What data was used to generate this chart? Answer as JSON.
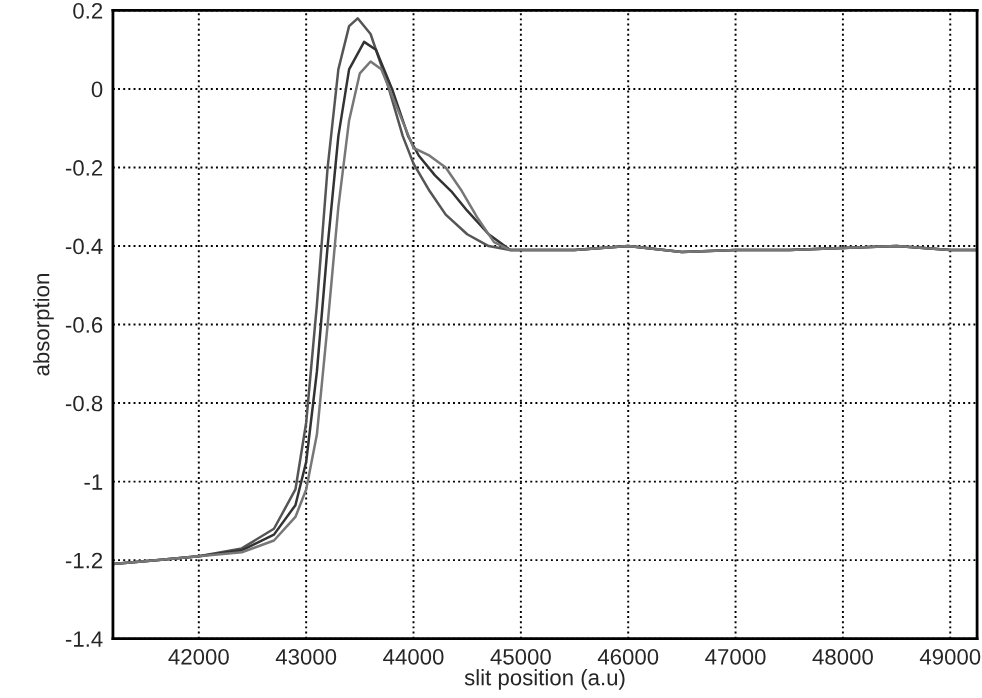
{
  "chart_data": {
    "type": "line",
    "xlabel": "slit position (a.u)",
    "ylabel": "absorption",
    "xlim": [
      41200,
      49250
    ],
    "ylim": [
      -1.4,
      0.2
    ],
    "xticks": [
      42000,
      43000,
      44000,
      45000,
      46000,
      47000,
      48000,
      49000
    ],
    "yticks": [
      -1.4,
      -1.2,
      -1,
      -0.8,
      -0.6,
      -0.4,
      -0.2,
      0,
      0.2
    ],
    "grid": true,
    "marker": "none",
    "line_style": "solid",
    "series": [
      {
        "color": "#555555",
        "x": [
          41200,
          41600,
          42000,
          42400,
          42700,
          42900,
          43000,
          43100,
          43200,
          43300,
          43400,
          43480,
          43600,
          43750,
          43900,
          44000,
          44150,
          44300,
          44500,
          44700,
          44900,
          45000,
          45500,
          46000,
          46500,
          47000,
          47500,
          48000,
          48500,
          49000,
          49250
        ],
        "values": [
          -1.21,
          -1.2,
          -1.19,
          -1.17,
          -1.12,
          -1.02,
          -0.85,
          -0.55,
          -0.2,
          0.05,
          0.16,
          0.18,
          0.14,
          0.02,
          -0.12,
          -0.19,
          -0.26,
          -0.32,
          -0.37,
          -0.4,
          -0.41,
          -0.41,
          -0.41,
          -0.4,
          -0.415,
          -0.41,
          -0.41,
          -0.405,
          -0.4,
          -0.41,
          -0.41
        ]
      },
      {
        "color": "#333333",
        "x": [
          41200,
          41600,
          42000,
          42400,
          42700,
          42900,
          43000,
          43100,
          43200,
          43300,
          43400,
          43540,
          43650,
          43800,
          43950,
          44050,
          44200,
          44350,
          44500,
          44700,
          44900,
          45000,
          45500,
          46000,
          46500,
          47000,
          47500,
          48000,
          48500,
          49000,
          49250
        ],
        "values": [
          -1.21,
          -1.2,
          -1.19,
          -1.175,
          -1.135,
          -1.06,
          -0.95,
          -0.72,
          -0.4,
          -0.12,
          0.05,
          0.12,
          0.1,
          0.0,
          -0.12,
          -0.17,
          -0.22,
          -0.26,
          -0.31,
          -0.37,
          -0.41,
          -0.41,
          -0.41,
          -0.4,
          -0.415,
          -0.41,
          -0.41,
          -0.405,
          -0.4,
          -0.41,
          -0.41
        ]
      },
      {
        "color": "#777777",
        "x": [
          41200,
          41600,
          42000,
          42400,
          42700,
          42900,
          43000,
          43100,
          43200,
          43300,
          43400,
          43500,
          43600,
          43700,
          43850,
          44000,
          44150,
          44300,
          44450,
          44600,
          44750,
          44900,
          45000,
          45500,
          46000,
          46500,
          47000,
          47500,
          48000,
          48500,
          49000,
          49250
        ],
        "values": [
          -1.21,
          -1.2,
          -1.19,
          -1.18,
          -1.15,
          -1.09,
          -1.02,
          -0.88,
          -0.6,
          -0.3,
          -0.08,
          0.04,
          0.07,
          0.05,
          -0.05,
          -0.15,
          -0.17,
          -0.2,
          -0.26,
          -0.33,
          -0.39,
          -0.41,
          -0.41,
          -0.41,
          -0.4,
          -0.415,
          -0.41,
          -0.41,
          -0.405,
          -0.4,
          -0.41,
          -0.41
        ]
      }
    ]
  }
}
